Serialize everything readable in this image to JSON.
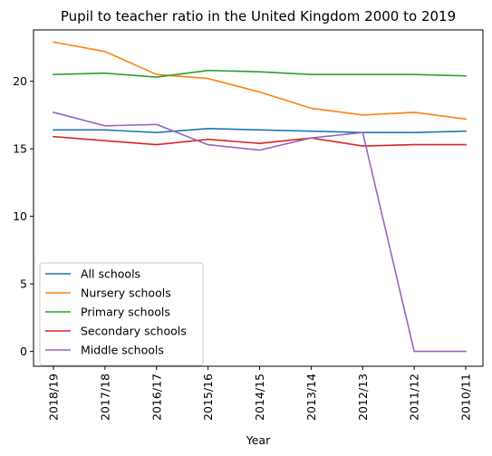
{
  "chart_data": {
    "type": "line",
    "title": "Pupil to teacher ratio in the United Kingdom 2000 to 2019",
    "xlabel": "Year",
    "ylabel": "",
    "categories": [
      "2018/19",
      "2017/18",
      "2016/17",
      "2015/16",
      "2014/15",
      "2013/14",
      "2012/13",
      "2011/12",
      "2010/11"
    ],
    "ylim": [
      -1.1,
      23.8
    ],
    "yticks": [
      0,
      5,
      10,
      15,
      20
    ],
    "grid": false,
    "legend_position": "lower-left",
    "series": [
      {
        "name": "All schools",
        "color": "#1f77b4",
        "values": [
          16.4,
          16.4,
          16.2,
          16.5,
          16.4,
          16.3,
          16.2,
          16.2,
          16.3
        ]
      },
      {
        "name": "Nursery schools",
        "color": "#ff7f0e",
        "values": [
          22.9,
          22.2,
          20.5,
          20.2,
          19.2,
          18.0,
          17.5,
          17.7,
          17.2
        ]
      },
      {
        "name": "Primary schools",
        "color": "#2ca02c",
        "values": [
          20.5,
          20.6,
          20.3,
          20.8,
          20.7,
          20.5,
          20.5,
          20.5,
          20.4
        ]
      },
      {
        "name": "Secondary schools",
        "color": "#d62728",
        "values": [
          15.9,
          15.6,
          15.3,
          15.7,
          15.4,
          15.8,
          15.2,
          15.3,
          15.3
        ]
      },
      {
        "name": "Middle schools",
        "color": "#9467bd",
        "values": [
          17.7,
          16.7,
          16.8,
          15.3,
          14.9,
          15.8,
          16.2,
          0,
          0
        ]
      }
    ]
  }
}
